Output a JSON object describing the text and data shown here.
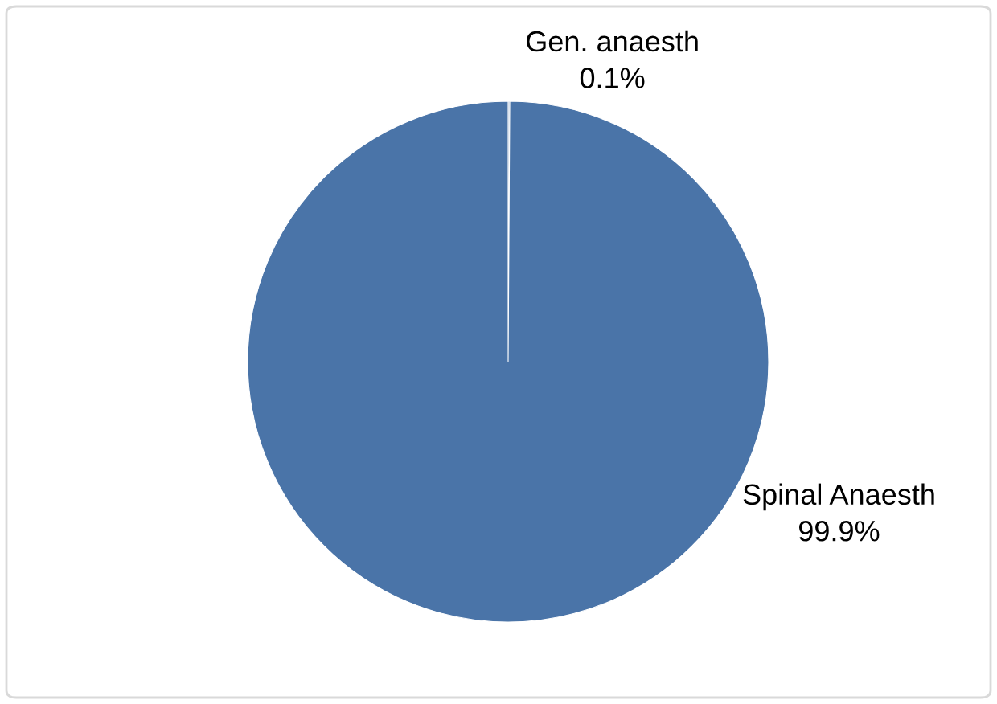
{
  "chart_data": {
    "type": "pie",
    "categories": [
      "Gen. anaesth",
      "Spinal Anaesth"
    ],
    "values": [
      0.1,
      99.9
    ],
    "value_labels": [
      "0.1%",
      "99.9%"
    ],
    "colors": [
      "#4a74a8",
      "#4a74a8"
    ],
    "legend": false
  }
}
